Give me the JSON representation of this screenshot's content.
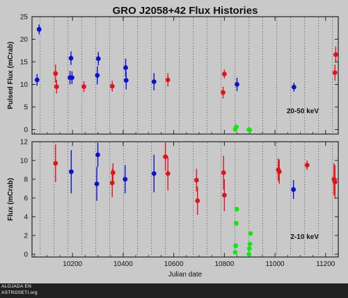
{
  "watermark": {
    "line1": "ALOJADA EN",
    "line2": "ASTROSETI.org"
  },
  "chart_data": [
    {
      "type": "scatter",
      "title": "GRO J2058+42 Flux Histories",
      "ylabel": "Pulsed Flux (mCrab)",
      "xlabel": "",
      "annotation": "20-50 keV",
      "xlim": [
        10040,
        11250
      ],
      "ylim": [
        -1,
        25
      ],
      "yticks": [
        0,
        5,
        10,
        15,
        20,
        25
      ],
      "xticks": [
        10200,
        10400,
        10600,
        10800,
        11000,
        11200
      ],
      "show_x_tick_labels": false,
      "outburst_lines": [
        10072,
        10127,
        10182,
        10237,
        10292,
        10347,
        10402,
        10457,
        10512,
        10567,
        10622,
        10677,
        10732,
        10787,
        10842,
        10897,
        10952,
        11007,
        11062,
        11117,
        11172,
        11227
      ],
      "series": [
        {
          "color": "#0a14c8",
          "points": [
            {
              "x": 10060,
              "y": 11.0,
              "err": 1.3
            },
            {
              "x": 10068,
              "y": 22.2,
              "err": 1.1
            },
            {
              "x": 10190,
              "y": 11.5,
              "err": 1.5
            },
            {
              "x": 10194,
              "y": 15.8,
              "err": 1.5
            },
            {
              "x": 10198,
              "y": 11.5,
              "err": 1.4
            },
            {
              "x": 10298,
              "y": 12.0,
              "err": 2.0
            },
            {
              "x": 10302,
              "y": 15.7,
              "err": 1.5
            },
            {
              "x": 10410,
              "y": 13.7,
              "err": 2.0
            },
            {
              "x": 10412,
              "y": 10.9,
              "err": 2.0
            },
            {
              "x": 10522,
              "y": 10.6,
              "err": 1.9
            },
            {
              "x": 10850,
              "y": 10.0,
              "err": 1.5
            },
            {
              "x": 11075,
              "y": 9.4,
              "err": 1.0
            }
          ]
        },
        {
          "color": "#e0141e",
          "points": [
            {
              "x": 10133,
              "y": 12.4,
              "err": 2.0
            },
            {
              "x": 10137,
              "y": 9.5,
              "err": 1.5
            },
            {
              "x": 10245,
              "y": 9.5,
              "err": 1.2
            },
            {
              "x": 10357,
              "y": 9.6,
              "err": 1.2
            },
            {
              "x": 10577,
              "y": 11.0,
              "err": 1.5
            },
            {
              "x": 10795,
              "y": 8.2,
              "err": 1.3
            },
            {
              "x": 10800,
              "y": 12.3,
              "err": 1.0
            },
            {
              "x": 11237,
              "y": 12.6,
              "err": 1.8
            },
            {
              "x": 11240,
              "y": 16.6,
              "err": 1.8
            }
          ]
        },
        {
          "color": "#14e614",
          "points": [
            {
              "x": 10843,
              "y": 0.1,
              "err": 0
            },
            {
              "x": 10847,
              "y": 0.6,
              "err": 0
            },
            {
              "x": 10897,
              "y": 0.0,
              "err": 0
            },
            {
              "x": 10900,
              "y": -0.1,
              "err": 0
            }
          ]
        }
      ]
    },
    {
      "type": "scatter",
      "ylabel": "Flux (mCrab)",
      "xlabel": "Julian date",
      "annotation": "2-10 keV",
      "xlim": [
        10040,
        11250
      ],
      "ylim": [
        -0.3,
        12
      ],
      "yticks": [
        0,
        2,
        4,
        6,
        8,
        10,
        12
      ],
      "xticks": [
        10200,
        10400,
        10600,
        10800,
        11000,
        11200
      ],
      "show_x_tick_labels": true,
      "series": [
        {
          "color": "#0a14c8",
          "points": [
            {
              "x": 10195,
              "y": 8.8,
              "err": 2.3
            },
            {
              "x": 10296,
              "y": 7.5,
              "err": 1.8
            },
            {
              "x": 10300,
              "y": 10.6,
              "err": 1.3
            },
            {
              "x": 10408,
              "y": 8.0,
              "err": 1.5
            },
            {
              "x": 10522,
              "y": 8.6,
              "err": 2.0
            },
            {
              "x": 11073,
              "y": 6.9,
              "err": 1.0
            }
          ]
        },
        {
          "color": "#e0141e",
          "points": [
            {
              "x": 10133,
              "y": 9.7,
              "err": 2.0
            },
            {
              "x": 10357,
              "y": 7.6,
              "err": 1.5
            },
            {
              "x": 10360,
              "y": 8.7,
              "err": 1.0
            },
            {
              "x": 10567,
              "y": 10.4,
              "err": 1.5
            },
            {
              "x": 10577,
              "y": 8.6,
              "err": 1.8
            },
            {
              "x": 10690,
              "y": 7.9,
              "err": 1.2
            },
            {
              "x": 10694,
              "y": 5.7,
              "err": 1.5
            },
            {
              "x": 10797,
              "y": 8.7,
              "err": 1.8
            },
            {
              "x": 10800,
              "y": 6.3,
              "err": 1.7
            },
            {
              "x": 11013,
              "y": 9.0,
              "err": 1.2
            },
            {
              "x": 11017,
              "y": 8.8,
              "err": 1.3
            },
            {
              "x": 11127,
              "y": 9.5,
              "err": 0.5
            },
            {
              "x": 11233,
              "y": 8.0,
              "err": 1.7
            },
            {
              "x": 11237,
              "y": 7.7,
              "err": 1.8
            }
          ]
        },
        {
          "color": "#14e614",
          "points": [
            {
              "x": 10843,
              "y": 0.2,
              "err": 0
            },
            {
              "x": 10845,
              "y": 0.9,
              "err": 0
            },
            {
              "x": 10847,
              "y": 3.3,
              "err": 0
            },
            {
              "x": 10849,
              "y": 4.8,
              "err": 0
            },
            {
              "x": 10897,
              "y": 0.0,
              "err": 0
            },
            {
              "x": 10899,
              "y": 0.6,
              "err": 0
            },
            {
              "x": 10901,
              "y": 1.1,
              "err": 0
            },
            {
              "x": 10903,
              "y": 2.2,
              "err": 0
            }
          ]
        }
      ]
    }
  ]
}
